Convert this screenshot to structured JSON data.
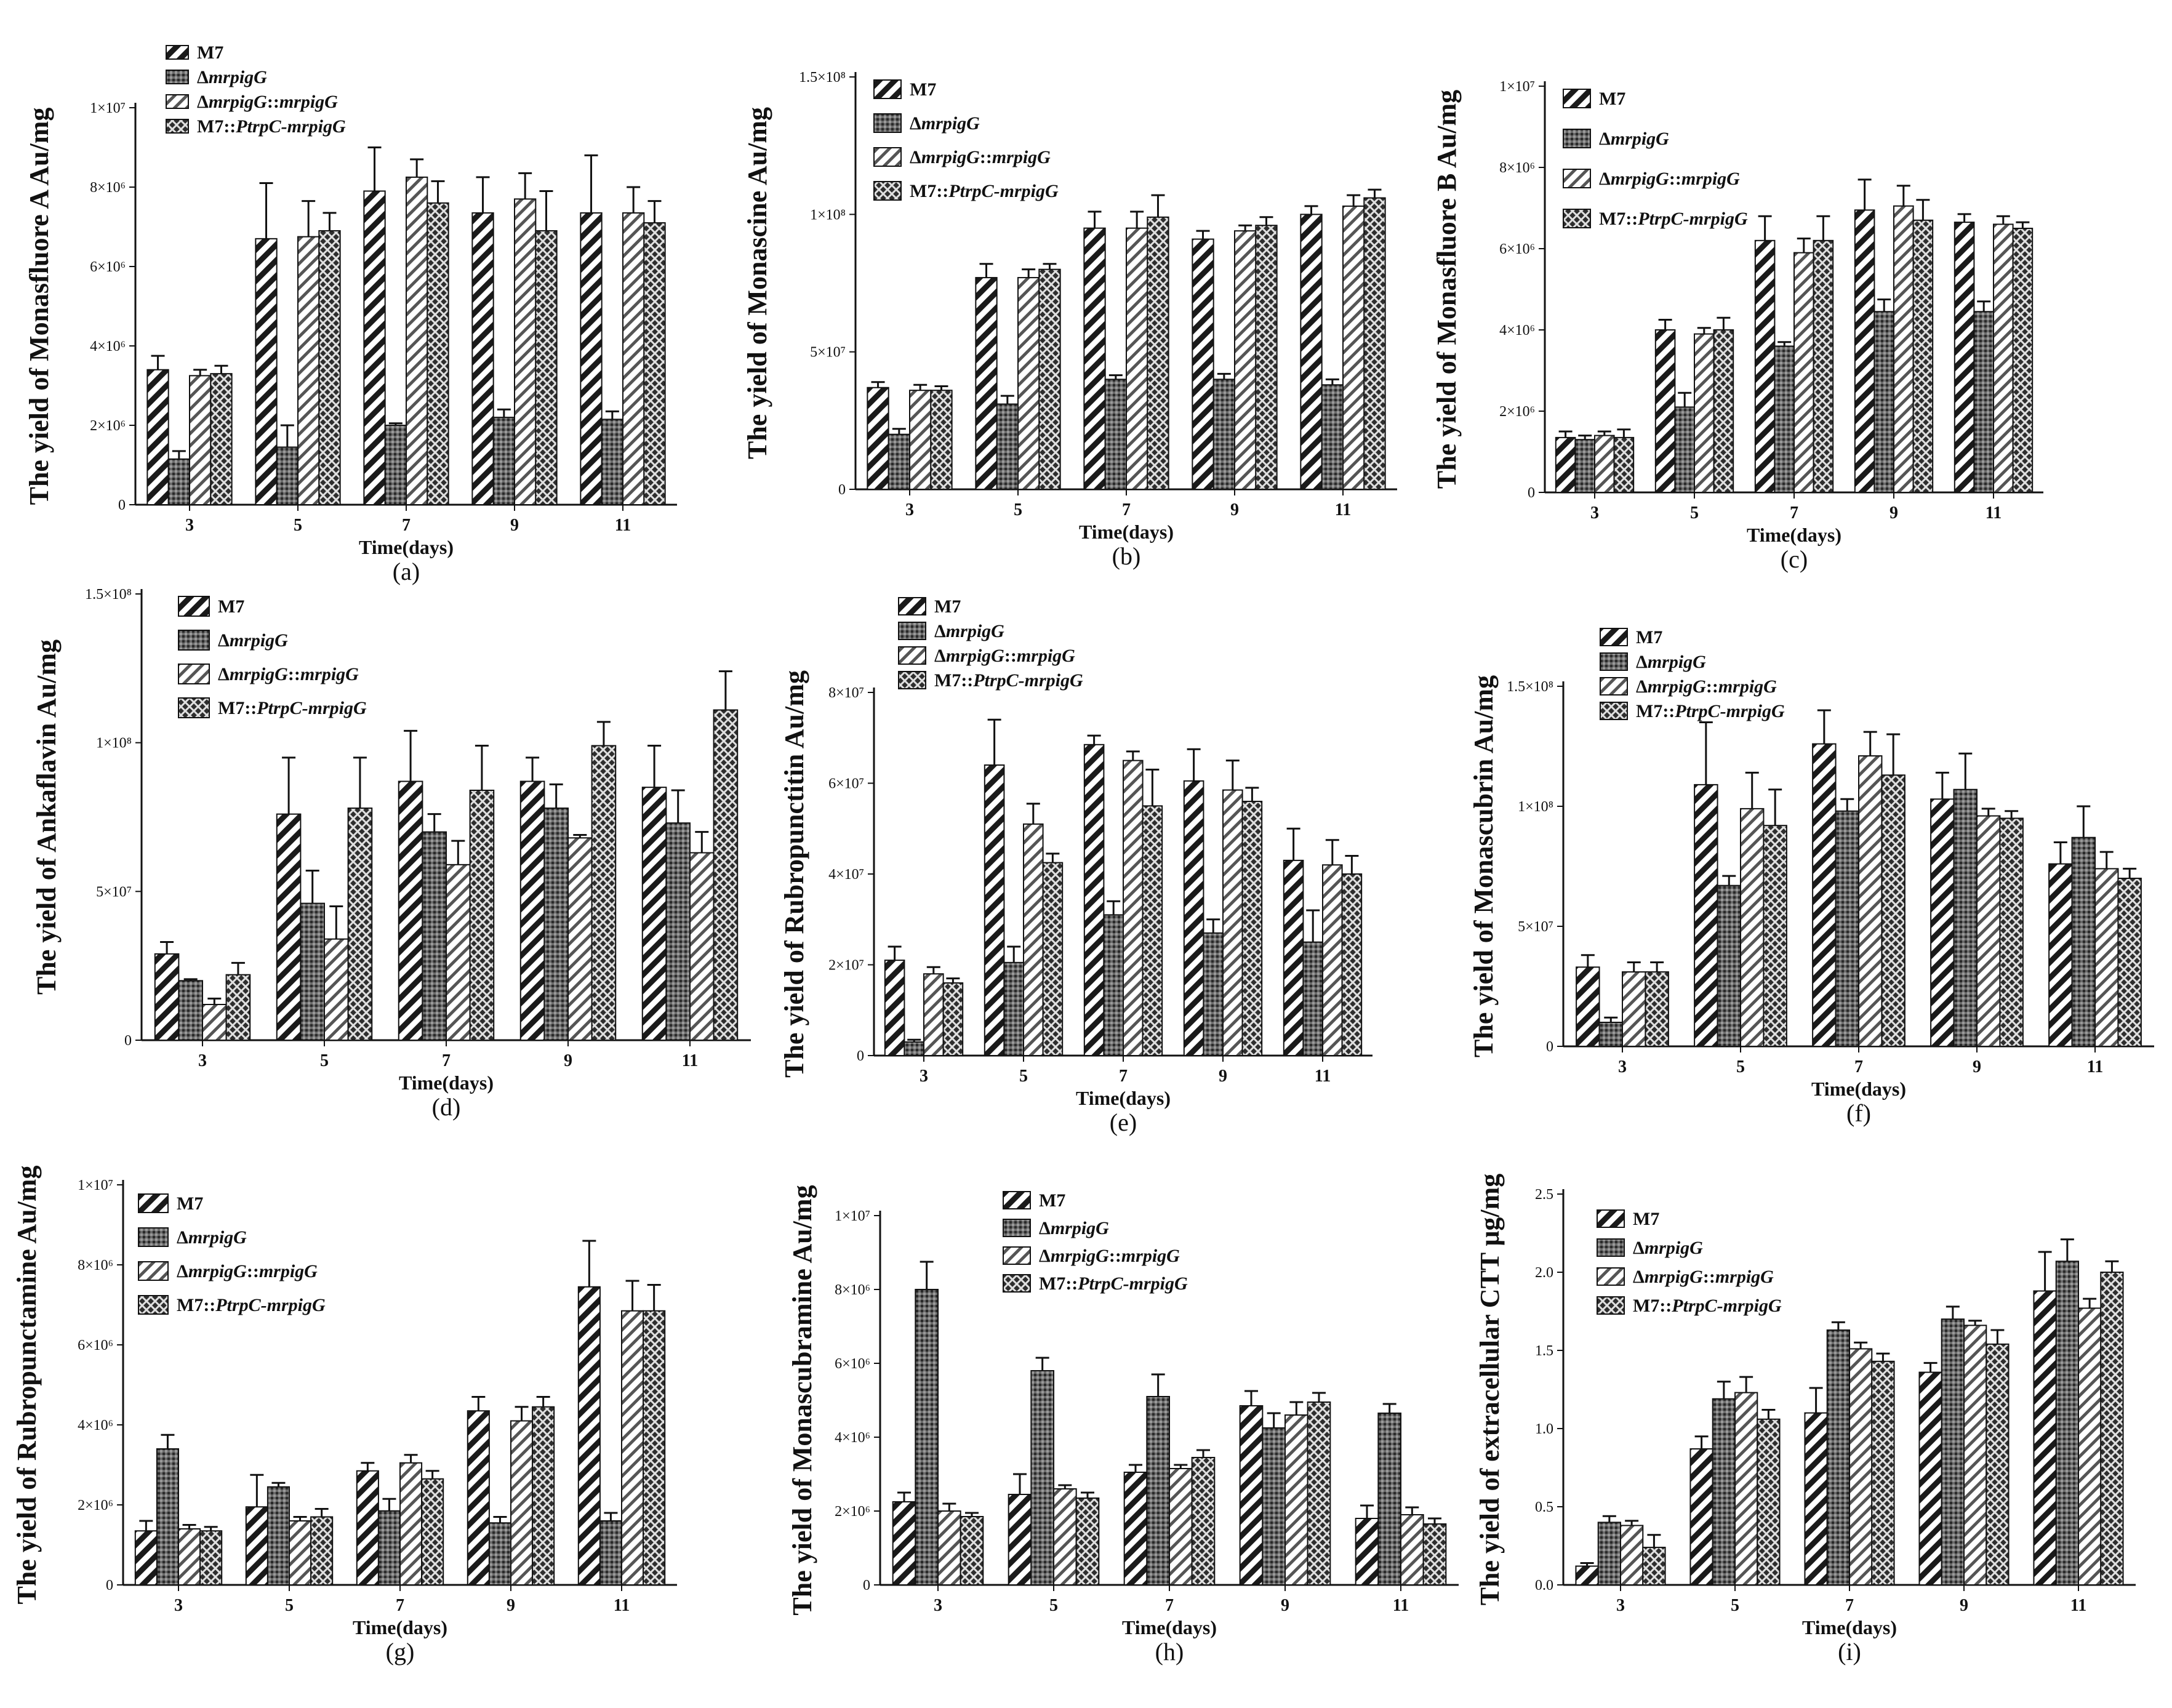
{
  "strains": [
    "M7",
    "ΔmrpigG",
    "ΔmrpigG::mrpigG",
    "M7::PtrpC-mrpigG"
  ],
  "legend_labels": [
    {
      "pre": "M7",
      "it": "",
      "post": ""
    },
    {
      "pre": "Δ",
      "it": "mrpigG",
      "post": ""
    },
    {
      "pre": "Δ",
      "it": "mrpigG",
      "post": "::",
      "it2": "mrpigG"
    },
    {
      "pre": "M7::",
      "it": "PtrpC-mrpigG",
      "post": ""
    }
  ],
  "colors": {
    "bar_fill": "#ffffff",
    "stroke": "#111111",
    "pattern_dark": "#1a1a1a",
    "pattern_gray": "#555555"
  },
  "chart_data": [
    {
      "letter": "(a)",
      "type": "bar",
      "ylabel": "The yield of Monasfluore A Au/mg",
      "xlabel": "Time(days)",
      "categories": [
        "3",
        "5",
        "7",
        "9",
        "11"
      ],
      "ylim": [
        0,
        10000000
      ],
      "yticks": [
        {
          "v": 0,
          "label": "0"
        },
        {
          "v": 2000000,
          "label": "2×10⁶"
        },
        {
          "v": 4000000,
          "label": "4×10⁶"
        },
        {
          "v": 6000000,
          "label": "6×10⁶"
        },
        {
          "v": 8000000,
          "label": "8×10⁶"
        },
        {
          "v": 10000000,
          "label": "1×10⁷"
        }
      ],
      "series": [
        {
          "name": "M7",
          "values": [
            3400000,
            6700000,
            7900000,
            7350000,
            7350000
          ],
          "errors": [
            350000,
            1400000,
            1100000,
            900000,
            1450000
          ]
        },
        {
          "name": "ΔmrpigG",
          "values": [
            1150000,
            1450000,
            2000000,
            2200000,
            2150000
          ],
          "errors": [
            200000,
            550000,
            50000,
            200000,
            200000
          ]
        },
        {
          "name": "ΔmrpigG::mrpigG",
          "values": [
            3250000,
            6750000,
            8250000,
            7700000,
            7350000
          ],
          "errors": [
            150000,
            900000,
            450000,
            650000,
            650000
          ]
        },
        {
          "name": "M7::PtrpC-mrpigG",
          "values": [
            3300000,
            6900000,
            7600000,
            6900000,
            7100000
          ],
          "errors": [
            200000,
            450000,
            550000,
            1000000,
            550000
          ]
        }
      ]
    },
    {
      "letter": "(b)",
      "type": "bar",
      "ylabel": "The yield of Monascine Au/mg",
      "xlabel": "Time(days)",
      "categories": [
        "3",
        "5",
        "7",
        "9",
        "11"
      ],
      "ylim": [
        0,
        150000000
      ],
      "yticks": [
        {
          "v": 0,
          "label": "0"
        },
        {
          "v": 50000000,
          "label": "5×10⁷"
        },
        {
          "v": 100000000,
          "label": "1×10⁸"
        },
        {
          "v": 150000000,
          "label": "1.5×10⁸"
        }
      ],
      "series": [
        {
          "name": "M7",
          "values": [
            37000000,
            77000000,
            95000000,
            91000000,
            100000000
          ],
          "errors": [
            2000000,
            5000000,
            6000000,
            3000000,
            3000000
          ]
        },
        {
          "name": "ΔmrpigG",
          "values": [
            20000000,
            31000000,
            40000000,
            40000000,
            38000000
          ],
          "errors": [
            2000000,
            3000000,
            1500000,
            2000000,
            2000000
          ]
        },
        {
          "name": "ΔmrpigG::mrpigG",
          "values": [
            36000000,
            77000000,
            95000000,
            94000000,
            103000000
          ],
          "errors": [
            2000000,
            3000000,
            6000000,
            2000000,
            4000000
          ]
        },
        {
          "name": "M7::PtrpC-mrpigG",
          "values": [
            36000000,
            80000000,
            99000000,
            96000000,
            106000000
          ],
          "errors": [
            1500000,
            2000000,
            8000000,
            3000000,
            3000000
          ]
        }
      ]
    },
    {
      "letter": "(c)",
      "type": "bar",
      "ylabel": "The yield of Monasfluore B Au/mg",
      "xlabel": "Time(days)",
      "categories": [
        "3",
        "5",
        "7",
        "9",
        "11"
      ],
      "ylim": [
        0,
        10000000
      ],
      "yticks": [
        {
          "v": 0,
          "label": "0"
        },
        {
          "v": 2000000,
          "label": "2×10⁶"
        },
        {
          "v": 4000000,
          "label": "4×10⁶"
        },
        {
          "v": 6000000,
          "label": "6×10⁶"
        },
        {
          "v": 8000000,
          "label": "8×10⁶"
        },
        {
          "v": 10000000,
          "label": "1×10⁷"
        }
      ],
      "series": [
        {
          "name": "M7",
          "values": [
            1350000,
            4000000,
            6200000,
            6950000,
            6650000
          ],
          "errors": [
            150000,
            250000,
            600000,
            750000,
            200000
          ]
        },
        {
          "name": "ΔmrpigG",
          "values": [
            1300000,
            2100000,
            3600000,
            4450000,
            4450000
          ],
          "errors": [
            100000,
            350000,
            100000,
            300000,
            250000
          ]
        },
        {
          "name": "ΔmrpigG::mrpigG",
          "values": [
            1400000,
            3900000,
            5900000,
            7050000,
            6600000
          ],
          "errors": [
            100000,
            150000,
            350000,
            500000,
            200000
          ]
        },
        {
          "name": "M7::PtrpC-mrpigG",
          "values": [
            1350000,
            4000000,
            6200000,
            6700000,
            6500000
          ],
          "errors": [
            200000,
            300000,
            600000,
            500000,
            150000
          ]
        }
      ]
    },
    {
      "letter": "(d)",
      "type": "bar",
      "ylabel": "The yield of Ankaflavin Au/mg",
      "xlabel": "Time(days)",
      "categories": [
        "3",
        "5",
        "7",
        "9",
        "11"
      ],
      "ylim": [
        0,
        150000000
      ],
      "yticks": [
        {
          "v": 0,
          "label": "0"
        },
        {
          "v": 50000000,
          "label": "5×10⁷"
        },
        {
          "v": 100000000,
          "label": "1×10⁸"
        },
        {
          "v": 150000000,
          "label": "1.5×10⁸"
        }
      ],
      "series": [
        {
          "name": "M7",
          "values": [
            29000000,
            76000000,
            87000000,
            87000000,
            85000000
          ],
          "errors": [
            4000000,
            19000000,
            17000000,
            8000000,
            14000000
          ]
        },
        {
          "name": "ΔmrpigG",
          "values": [
            20000000,
            46000000,
            70000000,
            78000000,
            73000000
          ],
          "errors": [
            500000,
            11000000,
            6000000,
            8000000,
            11000000
          ]
        },
        {
          "name": "ΔmrpigG::mrpigG",
          "values": [
            12000000,
            34000000,
            59000000,
            68000000,
            63000000
          ],
          "errors": [
            2000000,
            11000000,
            8000000,
            1000000,
            7000000
          ]
        },
        {
          "name": "M7::PtrpC-mrpigG",
          "values": [
            22000000,
            78000000,
            84000000,
            99000000,
            111000000
          ],
          "errors": [
            4000000,
            17000000,
            15000000,
            8000000,
            13000000
          ]
        }
      ]
    },
    {
      "letter": "(e)",
      "type": "bar",
      "ylabel": "The yield of Rubropunctitin Au/mg",
      "xlabel": "Time(days)",
      "categories": [
        "3",
        "5",
        "7",
        "9",
        "11"
      ],
      "ylim": [
        0,
        80000000
      ],
      "yticks": [
        {
          "v": 0,
          "label": "0"
        },
        {
          "v": 20000000,
          "label": "2×10⁷"
        },
        {
          "v": 40000000,
          "label": "4×10⁷"
        },
        {
          "v": 60000000,
          "label": "6×10⁷"
        },
        {
          "v": 80000000,
          "label": "8×10⁷"
        }
      ],
      "series": [
        {
          "name": "M7",
          "values": [
            21000000,
            64000000,
            68500000,
            60500000,
            43000000
          ],
          "errors": [
            3000000,
            10000000,
            2000000,
            7000000,
            7000000
          ]
        },
        {
          "name": "ΔmrpigG",
          "values": [
            3000000,
            20500000,
            31000000,
            27000000,
            25000000
          ],
          "errors": [
            500000,
            3500000,
            3000000,
            3000000,
            7000000
          ]
        },
        {
          "name": "ΔmrpigG::mrpigG",
          "values": [
            18000000,
            51000000,
            65000000,
            58500000,
            42000000
          ],
          "errors": [
            1500000,
            4500000,
            2000000,
            6500000,
            5500000
          ]
        },
        {
          "name": "M7::PtrpC-mrpigG",
          "values": [
            16000000,
            42500000,
            55000000,
            56000000,
            40000000
          ],
          "errors": [
            1000000,
            2000000,
            8000000,
            3000000,
            4000000
          ]
        }
      ]
    },
    {
      "letter": "(f)",
      "type": "bar",
      "ylabel": "The yield of Monascubrin Au/mg",
      "xlabel": "Time(days)",
      "categories": [
        "3",
        "5",
        "7",
        "9",
        "11"
      ],
      "ylim": [
        0,
        150000000
      ],
      "yticks": [
        {
          "v": 0,
          "label": "0"
        },
        {
          "v": 50000000,
          "label": "5×10⁷"
        },
        {
          "v": 100000000,
          "label": "1×10⁸"
        },
        {
          "v": 150000000,
          "label": "1.5×10⁸"
        }
      ],
      "series": [
        {
          "name": "M7",
          "values": [
            33000000,
            109000000,
            126000000,
            103000000,
            76000000
          ],
          "errors": [
            5000000,
            26000000,
            14000000,
            11000000,
            9000000
          ]
        },
        {
          "name": "ΔmrpigG",
          "values": [
            10000000,
            67000000,
            98000000,
            107000000,
            87000000
          ],
          "errors": [
            2000000,
            4000000,
            5000000,
            15000000,
            13000000
          ]
        },
        {
          "name": "ΔmrpigG::mrpigG",
          "values": [
            31000000,
            99000000,
            121000000,
            96000000,
            74000000
          ],
          "errors": [
            4000000,
            15000000,
            10000000,
            3000000,
            7000000
          ]
        },
        {
          "name": "M7::PtrpC-mrpigG",
          "values": [
            31000000,
            92000000,
            113000000,
            95000000,
            70000000
          ],
          "errors": [
            4000000,
            15000000,
            17000000,
            3000000,
            4000000
          ]
        }
      ]
    },
    {
      "letter": "(g)",
      "type": "bar",
      "ylabel": "The yield of Rubropunctamine Au/mg",
      "xlabel": "Time(days)",
      "categories": [
        "3",
        "5",
        "7",
        "9",
        "11"
      ],
      "ylim": [
        0,
        10000000
      ],
      "yticks": [
        {
          "v": 0,
          "label": "0"
        },
        {
          "v": 2000000,
          "label": "2×10⁶"
        },
        {
          "v": 4000000,
          "label": "4×10⁶"
        },
        {
          "v": 6000000,
          "label": "6×10⁶"
        },
        {
          "v": 8000000,
          "label": "8×10⁶"
        },
        {
          "v": 10000000,
          "label": "1×10⁷"
        }
      ],
      "series": [
        {
          "name": "M7",
          "values": [
            1350000,
            1950000,
            2850000,
            4350000,
            7450000
          ],
          "errors": [
            250000,
            800000,
            200000,
            350000,
            1150000
          ]
        },
        {
          "name": "ΔmrpigG",
          "values": [
            3400000,
            2450000,
            1850000,
            1550000,
            1600000
          ],
          "errors": [
            350000,
            100000,
            300000,
            150000,
            200000
          ]
        },
        {
          "name": "ΔmrpigG::mrpigG",
          "values": [
            1400000,
            1600000,
            3050000,
            4100000,
            6850000
          ],
          "errors": [
            100000,
            100000,
            200000,
            350000,
            750000
          ]
        },
        {
          "name": "M7::PtrpC-mrpigG",
          "values": [
            1350000,
            1700000,
            2650000,
            4450000,
            6850000
          ],
          "errors": [
            100000,
            200000,
            200000,
            250000,
            650000
          ]
        }
      ]
    },
    {
      "letter": "(h)",
      "type": "bar",
      "ylabel": "The yield of Monascubramine Au/mg",
      "xlabel": "Time(days)",
      "categories": [
        "3",
        "5",
        "7",
        "9",
        "11"
      ],
      "ylim": [
        0,
        10000000
      ],
      "yticks": [
        {
          "v": 0,
          "label": "0"
        },
        {
          "v": 2000000,
          "label": "2×10⁶"
        },
        {
          "v": 4000000,
          "label": "4×10⁶"
        },
        {
          "v": 6000000,
          "label": "6×10⁶"
        },
        {
          "v": 8000000,
          "label": "8×10⁶"
        },
        {
          "v": 10000000,
          "label": "1×10⁷"
        }
      ],
      "series": [
        {
          "name": "M7",
          "values": [
            2250000,
            2450000,
            3050000,
            4850000,
            1800000
          ],
          "errors": [
            250000,
            550000,
            200000,
            400000,
            350000
          ]
        },
        {
          "name": "ΔmrpigG",
          "values": [
            8000000,
            5800000,
            5100000,
            4250000,
            4650000
          ],
          "errors": [
            750000,
            350000,
            600000,
            400000,
            250000
          ]
        },
        {
          "name": "ΔmrpigG::mrpigG",
          "values": [
            2000000,
            2600000,
            3150000,
            4600000,
            1900000
          ],
          "errors": [
            200000,
            100000,
            100000,
            350000,
            200000
          ]
        },
        {
          "name": "M7::PtrpC-mrpigG",
          "values": [
            1850000,
            2350000,
            3450000,
            4950000,
            1650000
          ],
          "errors": [
            100000,
            150000,
            200000,
            250000,
            150000
          ]
        }
      ]
    },
    {
      "letter": "(i)",
      "type": "bar",
      "ylabel": "The yield of extracellular CTT μg/mg",
      "xlabel": "Time(days)",
      "categories": [
        "3",
        "5",
        "7",
        "9",
        "11"
      ],
      "ylim": [
        0,
        2.5
      ],
      "yticks": [
        {
          "v": 0,
          "label": "0.0"
        },
        {
          "v": 0.5,
          "label": "0.5"
        },
        {
          "v": 1,
          "label": "1.0"
        },
        {
          "v": 1.5,
          "label": "1.5"
        },
        {
          "v": 2,
          "label": "2.0"
        },
        {
          "v": 2.5,
          "label": "2.5"
        }
      ],
      "series": [
        {
          "name": "M7",
          "values": [
            0.12,
            0.87,
            1.1,
            1.36,
            1.88
          ],
          "errors": [
            0.02,
            0.08,
            0.16,
            0.06,
            0.25
          ]
        },
        {
          "name": "ΔmrpigG",
          "values": [
            0.4,
            1.19,
            1.63,
            1.7,
            2.07
          ],
          "errors": [
            0.04,
            0.11,
            0.05,
            0.08,
            0.14
          ]
        },
        {
          "name": "ΔmrpigG::mrpigG",
          "values": [
            0.38,
            1.23,
            1.51,
            1.66,
            1.77
          ],
          "errors": [
            0.03,
            0.1,
            0.04,
            0.03,
            0.06
          ]
        },
        {
          "name": "M7::PtrpC-mrpigG",
          "values": [
            0.24,
            1.06,
            1.43,
            1.54,
            2.0
          ],
          "errors": [
            0.08,
            0.06,
            0.05,
            0.09,
            0.07
          ]
        }
      ]
    }
  ]
}
